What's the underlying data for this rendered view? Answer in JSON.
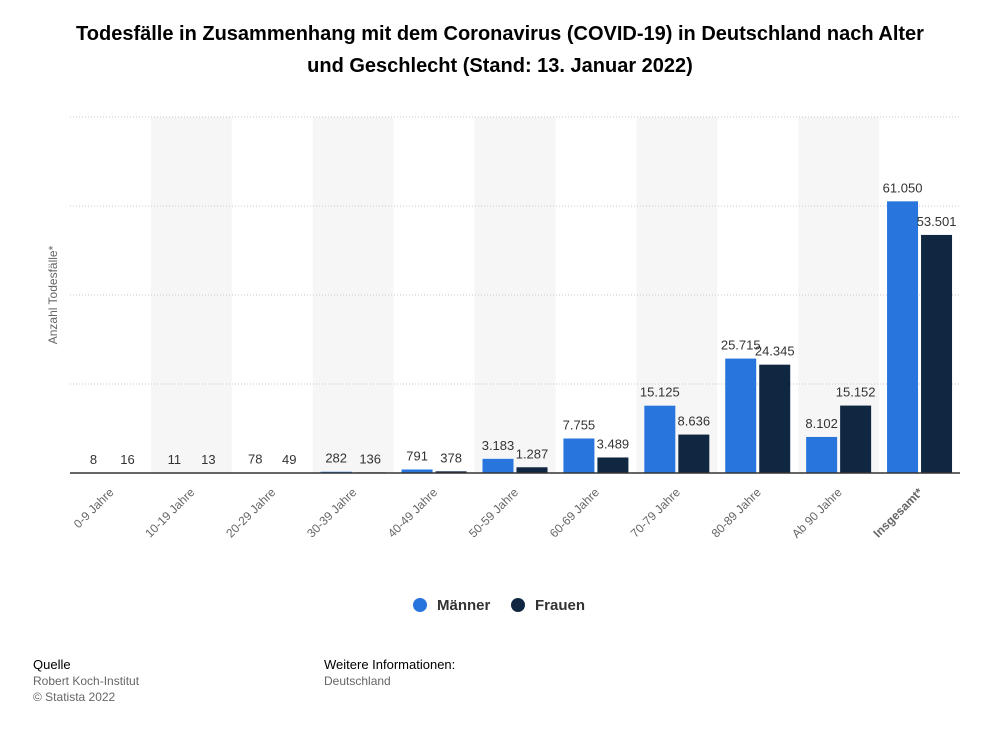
{
  "chart_data": {
    "type": "bar",
    "title": "Todesfälle in Zusammenhang mit dem Coronavirus (COVID-19) in Deutschland nach Alter und Geschlecht (Stand: 13. Januar 2022)",
    "xlabel": "",
    "ylabel": "Anzahl Todesfälle*",
    "categories": [
      "0-9 Jahre",
      "10-19 Jahre",
      "20-29 Jahre",
      "30-39 Jahre",
      "40-49 Jahre",
      "50-59 Jahre",
      "60-69 Jahre",
      "70-79 Jahre",
      "80-89 Jahre",
      "Ab 90 Jahre",
      "Insgesamt*"
    ],
    "series": [
      {
        "name": "Männer",
        "color": "#2876dd",
        "values": [
          8,
          11,
          78,
          282,
          791,
          3183,
          7755,
          15125,
          25715,
          8102,
          61050
        ],
        "labels": [
          "8",
          "11",
          "78",
          "282",
          "791",
          "3.183",
          "7.755",
          "15.125",
          "25.715",
          "8.102",
          "61.050"
        ]
      },
      {
        "name": "Frauen",
        "color": "#0f2741",
        "values": [
          16,
          13,
          49,
          136,
          378,
          1287,
          3489,
          8636,
          24345,
          15152,
          53501
        ],
        "labels": [
          "16",
          "13",
          "49",
          "136",
          "378",
          "1.287",
          "3.489",
          "8.636",
          "24.345",
          "15.152",
          "53.501"
        ]
      }
    ],
    "ylim": [
      0,
      80000
    ],
    "grid": true,
    "legend_position": "bottom"
  },
  "footer": {
    "source_heading": "Quelle",
    "source_name": "Robert Koch-Institut",
    "copyright": "© Statista 2022",
    "info_heading": "Weitere Informationen:",
    "info_value": "Deutschland"
  }
}
